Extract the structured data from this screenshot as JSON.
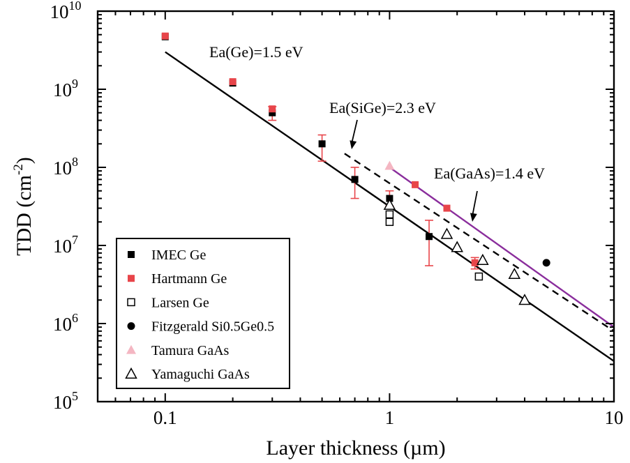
{
  "chart_data": {
    "type": "scatter",
    "xlabel": "Layer thickness (µm)",
    "ylabel_base": "TDD (cm",
    "ylabel_sup": "-2",
    "ylabel_close": ")",
    "xscale": "log",
    "yscale": "log",
    "xlim": [
      0.05,
      10
    ],
    "ylim": [
      100000,
      10000000000
    ],
    "x_ticks": [
      {
        "value": 0.1,
        "label": "0.1"
      },
      {
        "value": 1,
        "label": "1"
      },
      {
        "value": 10,
        "label": "10"
      }
    ],
    "y_ticks": [
      {
        "value": 100000,
        "base": "10",
        "exp": "5"
      },
      {
        "value": 1000000,
        "base": "10",
        "exp": "6"
      },
      {
        "value": 10000000,
        "base": "10",
        "exp": "7"
      },
      {
        "value": 100000000,
        "base": "10",
        "exp": "8"
      },
      {
        "value": 1000000000,
        "base": "10",
        "exp": "9"
      },
      {
        "value": 10000000000,
        "base": "10",
        "exp": "10"
      }
    ],
    "grid": false,
    "legend_position": "bottom-left",
    "series": [
      {
        "name": "IMEC Ge",
        "marker": "filled-square",
        "color": "#000000",
        "points": [
          [
            0.1,
            4700000000.0
          ],
          [
            0.2,
            1200000000.0
          ],
          [
            0.3,
            500000000.0
          ],
          [
            0.5,
            200000000.0
          ],
          [
            0.7,
            70000000.0
          ],
          [
            1.0,
            40000000.0
          ],
          [
            1.5,
            13000000.0
          ]
        ]
      },
      {
        "name": "Hartmann Ge",
        "marker": "filled-square",
        "color": "#e8454a",
        "points": [
          [
            0.1,
            4800000000.0
          ],
          [
            0.2,
            1250000000.0
          ],
          [
            0.3,
            560000000.0
          ],
          [
            1.3,
            60000000.0
          ],
          [
            1.8,
            30000000.0
          ],
          [
            2.4,
            6000000.0
          ]
        ]
      },
      {
        "name": "Larsen Ge",
        "marker": "open-square",
        "color": "#000000",
        "points": [
          [
            1.0,
            25000000.0
          ],
          [
            1.0,
            20000000.0
          ],
          [
            2.5,
            4000000.0
          ]
        ]
      },
      {
        "name": "Fitzgerald Si0.5Ge0.5",
        "marker": "filled-circle",
        "color": "#000000",
        "points": [
          [
            5.0,
            6000000.0
          ]
        ]
      },
      {
        "name": "Tamura GaAs",
        "marker": "filled-triangle",
        "color": "#f4b6c2",
        "points": [
          [
            1.0,
            105000000.0
          ]
        ]
      },
      {
        "name": "Yamaguchi GaAs",
        "marker": "open-triangle",
        "color": "#000000",
        "points": [
          [
            1.0,
            33000000.0
          ],
          [
            1.8,
            14000000.0
          ],
          [
            2.0,
            9500000.0
          ],
          [
            2.6,
            6500000.0
          ],
          [
            3.6,
            4300000.0
          ],
          [
            4.0,
            2000000.0
          ]
        ]
      }
    ],
    "error_bars": [
      {
        "x": 0.3,
        "low": 400000000.0,
        "high": 600000000.0
      },
      {
        "x": 0.5,
        "low": 120000000.0,
        "high": 260000000.0
      },
      {
        "x": 0.7,
        "low": 40000000.0,
        "high": 100000000.0
      },
      {
        "x": 1.0,
        "low": 32000000.0,
        "high": 50000000.0
      },
      {
        "x": 1.5,
        "low": 5500000.0,
        "high": 21000000.0
      },
      {
        "x": 2.4,
        "low": 5000000.0,
        "high": 7000000.0
      }
    ],
    "fit_lines": [
      {
        "label": "Ea(Ge)=1.5 eV",
        "style": "solid",
        "color": "#000000",
        "from": [
          0.1,
          3000000000.0
        ],
        "to": [
          10,
          330000.0
        ]
      },
      {
        "label": "Ea(SiGe)=2.3 eV",
        "style": "dashed",
        "color": "#000000",
        "from": [
          0.63,
          150000000.0
        ],
        "to": [
          10,
          800000.0
        ]
      },
      {
        "label": "Ea(GaAs)=1.4 eV",
        "style": "solid",
        "color": "#8a2d9c",
        "from": [
          1.0,
          100000000.0
        ],
        "to": [
          10,
          900000.0
        ]
      }
    ],
    "annotations": [
      {
        "text": "Ea(Ge)=1.5 eV",
        "arrow": false
      },
      {
        "text": "Ea(SiGe)=2.3 eV",
        "arrow": true
      },
      {
        "text": "Ea(GaAs)=1.4 eV",
        "arrow": true
      }
    ]
  }
}
